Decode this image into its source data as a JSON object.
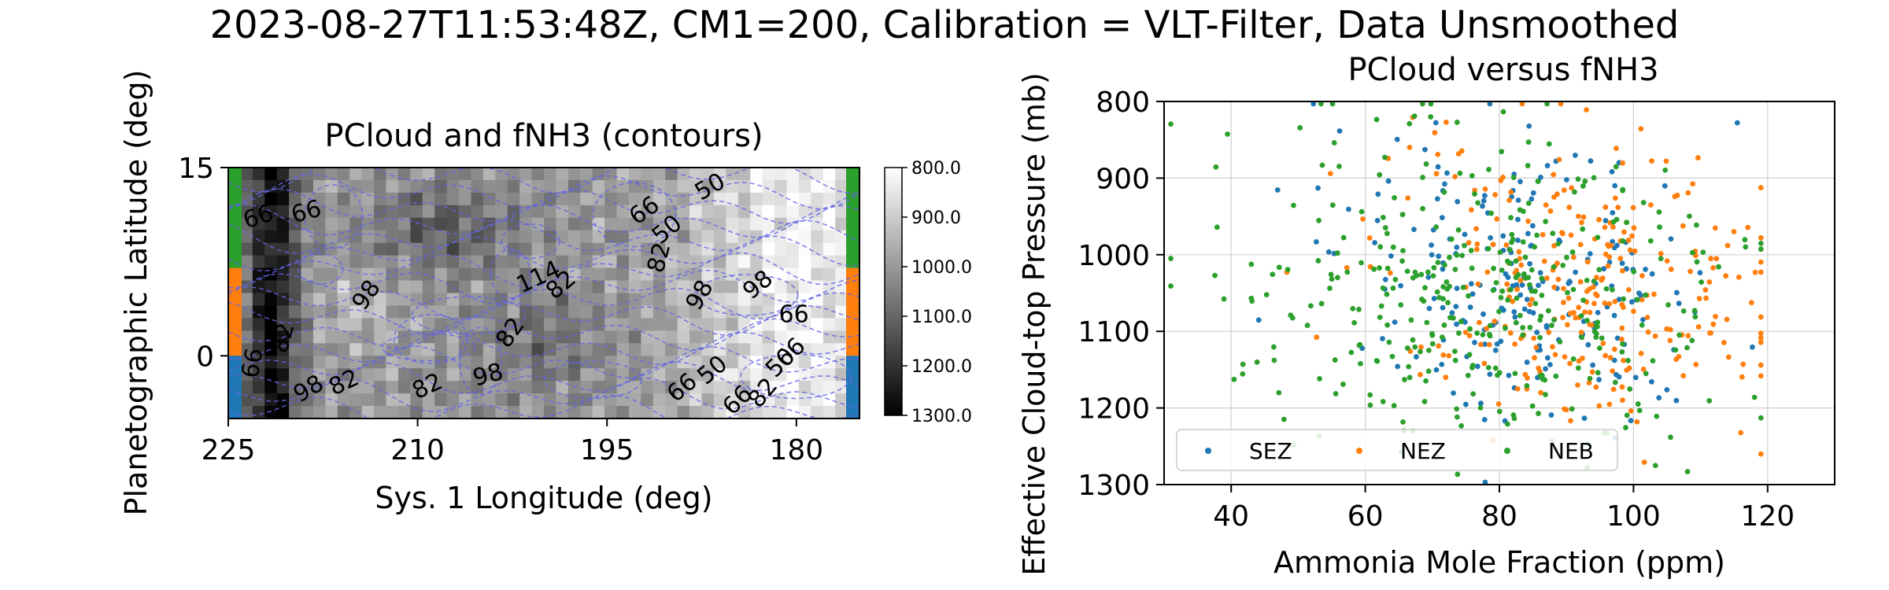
{
  "figure": {
    "suptitle": "2023-08-27T11:53:48Z, CM1=200, Calibration = VLT-Filter, Data Unsmoothed"
  },
  "chart_data": [
    {
      "type": "heatmap",
      "title": "PCloud and fNH3 (contours)",
      "xlabel": "Sys. 1 Longitude (deg)",
      "ylabel": "Planetographic Latitude (deg)",
      "xlim": [
        225,
        175
      ],
      "ylim": [
        -5,
        15
      ],
      "xticks": [
        225,
        210,
        195,
        180
      ],
      "yticks": [
        15,
        0
      ],
      "colormap": "gray_r",
      "colorbar": {
        "range": [
          800,
          1300
        ],
        "ticks": [
          "800.0",
          "900.0",
          "1000.0",
          "1100.0",
          "1200.0",
          "1300.0"
        ]
      },
      "band_colors": [
        {
          "band": "NEB",
          "lat": [
            7,
            15
          ],
          "color": "#2ca02c"
        },
        {
          "band": "NEZ",
          "lat": [
            0,
            7
          ],
          "color": "#ff7f0e"
        },
        {
          "band": "SEZ",
          "lat": [
            -5,
            0
          ],
          "color": "#1f77b4"
        }
      ],
      "contour_color": "#6464e6",
      "contour_labels": [
        {
          "text": "66",
          "lon": 222.6,
          "lat": 11.0,
          "rot": -18
        },
        {
          "text": "66",
          "lon": 218.8,
          "lat": 11.4,
          "rot": -15
        },
        {
          "text": "66",
          "lon": 192.0,
          "lat": 11.5,
          "rot": -35
        },
        {
          "text": "50",
          "lon": 186.8,
          "lat": 13.4,
          "rot": -30
        },
        {
          "text": "50",
          "lon": 190.2,
          "lat": 10.0,
          "rot": -40
        },
        {
          "text": "82",
          "lon": 190.8,
          "lat": 7.8,
          "rot": -75
        },
        {
          "text": "98",
          "lon": 187.6,
          "lat": 4.8,
          "rot": -60
        },
        {
          "text": "114",
          "lon": 200.4,
          "lat": 6.2,
          "rot": -25
        },
        {
          "text": "82",
          "lon": 198.6,
          "lat": 5.6,
          "rot": -40
        },
        {
          "text": "98",
          "lon": 183.0,
          "lat": 5.6,
          "rot": -40
        },
        {
          "text": "66",
          "lon": 180.2,
          "lat": 3.2,
          "rot": 0
        },
        {
          "text": "98",
          "lon": 214.0,
          "lat": 4.8,
          "rot": -55
        },
        {
          "text": "82",
          "lon": 220.6,
          "lat": 1.4,
          "rot": -75
        },
        {
          "text": "82",
          "lon": 202.6,
          "lat": 1.8,
          "rot": -55
        },
        {
          "text": "66",
          "lon": 223.0,
          "lat": -0.6,
          "rot": -80
        },
        {
          "text": "98",
          "lon": 218.6,
          "lat": -2.7,
          "rot": -30
        },
        {
          "text": "82",
          "lon": 215.8,
          "lat": -2.2,
          "rot": -25
        },
        {
          "text": "82",
          "lon": 209.2,
          "lat": -2.5,
          "rot": -25
        },
        {
          "text": "98",
          "lon": 204.4,
          "lat": -1.6,
          "rot": -15
        },
        {
          "text": "66",
          "lon": 189.0,
          "lat": -2.6,
          "rot": -40
        },
        {
          "text": "50",
          "lon": 186.6,
          "lat": -1.2,
          "rot": -40
        },
        {
          "text": "66",
          "lon": 184.6,
          "lat": -3.6,
          "rot": -45
        },
        {
          "text": "82",
          "lon": 182.6,
          "lat": -3.0,
          "rot": -50
        },
        {
          "text": "50",
          "lon": 181.2,
          "lat": -0.6,
          "rot": -45
        },
        {
          "text": "66",
          "lon": 180.4,
          "lat": 0.2,
          "rot": -45
        }
      ]
    },
    {
      "type": "scatter",
      "title": "PCloud versus fNH3",
      "xlabel": "Ammonia Mole Fraction (ppm)",
      "ylabel": "Effective Cloud-top Pressure (mb)",
      "xlim": [
        30,
        130
      ],
      "ylim": [
        1300,
        800
      ],
      "xticks": [
        40,
        60,
        80,
        100,
        120
      ],
      "yticks": [
        800,
        900,
        1000,
        1100,
        1200,
        1300
      ],
      "grid": true,
      "legend_position": "lower-left",
      "series": [
        {
          "name": "SEZ",
          "color": "#1f77b4",
          "count": 220,
          "x_center": 84,
          "x_spread": 14,
          "y_center": 1030,
          "y_spread": 90
        },
        {
          "name": "NEZ",
          "color": "#ff7f0e",
          "count": 280,
          "x_center": 92,
          "x_spread": 15,
          "y_center": 1040,
          "y_spread": 95
        },
        {
          "name": "NEB",
          "color": "#2ca02c",
          "count": 360,
          "x_center": 78,
          "x_spread": 18,
          "y_center": 1050,
          "y_spread": 100
        }
      ]
    }
  ]
}
